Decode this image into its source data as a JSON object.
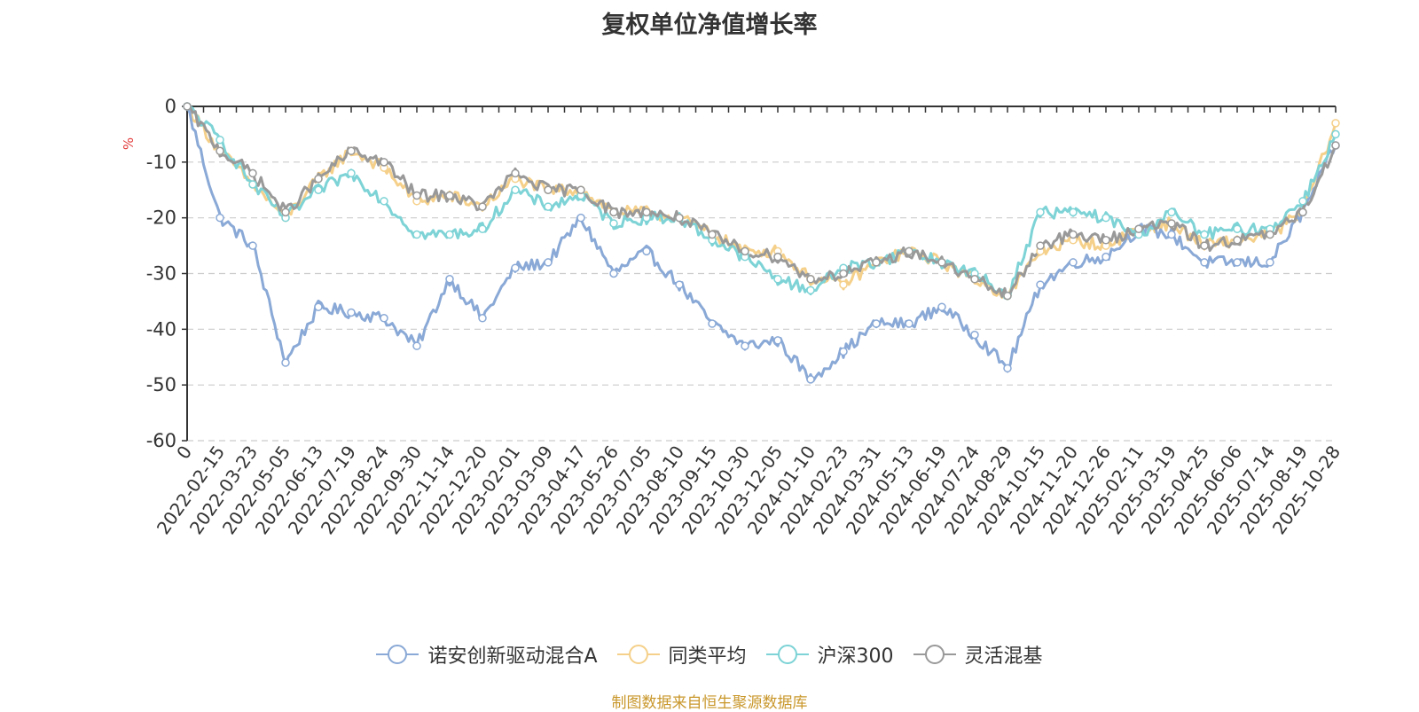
{
  "chart_data": {
    "type": "line",
    "title": "复权单位净值增长率",
    "ylabel": "%",
    "xlabel": "",
    "ylim": [
      -60,
      0
    ],
    "yticks": [
      "0",
      "-10",
      "-20",
      "-30",
      "-40",
      "-50",
      "-60"
    ],
    "grid": true,
    "legend_position": "bottom",
    "x_tick_labels": [
      "0",
      "2022-02-15",
      "2022-03-23",
      "2022-05-05",
      "2022-06-13",
      "2022-07-19",
      "2022-08-24",
      "2022-09-30",
      "2022-11-14",
      "2022-12-20",
      "2023-02-01",
      "2023-03-09",
      "2023-04-17",
      "2023-05-26",
      "2023-07-05",
      "2023-08-10",
      "2023-09-15",
      "2023-10-30",
      "2023-12-05",
      "2024-01-10",
      "2024-02-23",
      "2024-03-31",
      "2024-05-13",
      "2024-06-19",
      "2024-07-24",
      "2024-08-29",
      "2024-10-15",
      "2024-11-20",
      "2024-12-26",
      "2025-02-11",
      "2025-03-19",
      "2025-04-25",
      "2025-06-06",
      "2025-07-14",
      "2025-08-19",
      "2025-10-28"
    ],
    "series": [
      {
        "name": "诺安创新驱动混合A",
        "color": "#8aa9d6",
        "values": [
          0,
          -20,
          -25,
          -46,
          -36,
          -37,
          -38,
          -43,
          -31,
          -38,
          -29,
          -28,
          -20,
          -30,
          -26,
          -32,
          -39,
          -43,
          -42,
          -49,
          -44,
          -39,
          -39,
          -36,
          -41,
          -47,
          -32,
          -28,
          -27,
          -22,
          -23,
          -28,
          -28,
          -28,
          -19,
          -7
        ]
      },
      {
        "name": "同类平均",
        "color": "#f5d08a",
        "values": [
          0,
          -8,
          -14,
          -20,
          -13,
          -8,
          -11,
          -17,
          -16,
          -18,
          -13,
          -15,
          -15,
          -19,
          -19,
          -20,
          -23,
          -26,
          -26,
          -31,
          -32,
          -28,
          -26,
          -28,
          -31,
          -34,
          -26,
          -24,
          -25,
          -22,
          -21,
          -25,
          -24,
          -23,
          -19,
          -3
        ]
      },
      {
        "name": "沪深300",
        "color": "#7dd3d6",
        "values": [
          0,
          -6,
          -14,
          -20,
          -15,
          -12,
          -17,
          -23,
          -23,
          -22,
          -15,
          -18,
          -16,
          -21,
          -20,
          -20,
          -24,
          -27,
          -31,
          -33,
          -29,
          -28,
          -26,
          -28,
          -30,
          -34,
          -19,
          -19,
          -20,
          -23,
          -19,
          -23,
          -22,
          -22,
          -17,
          -5
        ]
      },
      {
        "name": "灵活混基",
        "color": "#999999",
        "values": [
          0,
          -8,
          -12,
          -19,
          -13,
          -8,
          -10,
          -16,
          -16,
          -18,
          -12,
          -15,
          -15,
          -19,
          -19,
          -20,
          -23,
          -26,
          -27,
          -31,
          -30,
          -28,
          -26,
          -28,
          -31,
          -34,
          -25,
          -23,
          -24,
          -22,
          -21,
          -25,
          -24,
          -23,
          -19,
          -7
        ]
      }
    ]
  },
  "source_note": "制图数据来自恒生聚源数据库"
}
